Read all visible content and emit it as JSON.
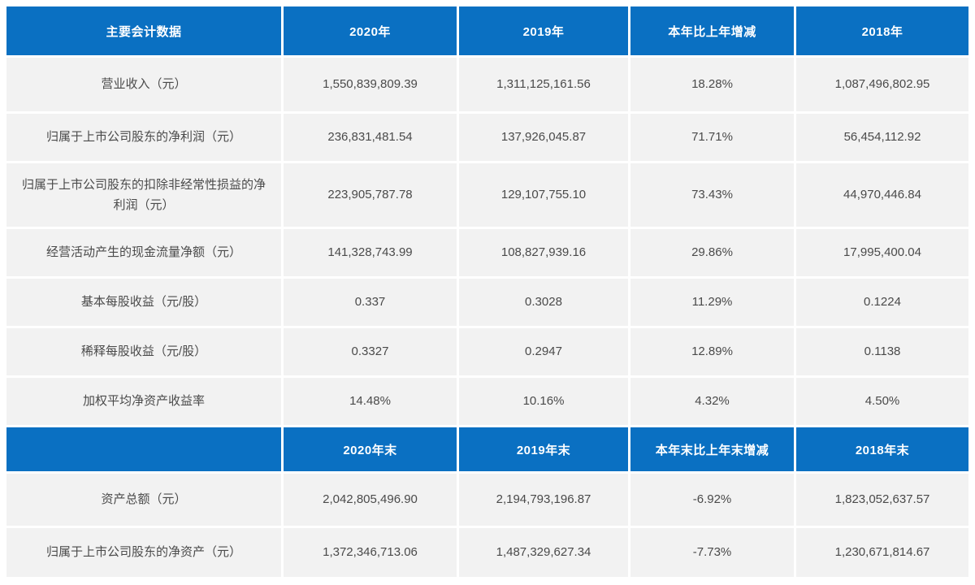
{
  "colors": {
    "header_bg": "#0a70c2",
    "cell_bg": "#f2f2f2",
    "cell_text": "#4a4a4a",
    "header_text": "#ffffff"
  },
  "table": {
    "section1": {
      "headers": [
        "主要会计数据",
        "2020年",
        "2019年",
        "本年比上年增减",
        "2018年"
      ],
      "rows": [
        {
          "cells": [
            "营业收入（元）",
            "1,550,839,809.39",
            "1,311,125,161.56",
            "18.28%",
            "1,087,496,802.95"
          ]
        },
        {
          "cells": [
            "归属于上市公司股东的净利润（元）",
            "236,831,481.54",
            "137,926,045.87",
            "71.71%",
            "56,454,112.92"
          ]
        },
        {
          "cells": [
            "归属于上市公司股东的扣除非经常性损益的净利润（元）",
            "223,905,787.78",
            "129,107,755.10",
            "73.43%",
            "44,970,446.84"
          ]
        },
        {
          "cells": [
            "经营活动产生的现金流量净额（元）",
            "141,328,743.99",
            "108,827,939.16",
            "29.86%",
            "17,995,400.04"
          ]
        },
        {
          "cells": [
            "基本每股收益（元/股）",
            "0.337",
            "0.3028",
            "11.29%",
            "0.1224"
          ]
        },
        {
          "cells": [
            "稀释每股收益（元/股）",
            "0.3327",
            "0.2947",
            "12.89%",
            "0.1138"
          ]
        },
        {
          "cells": [
            "加权平均净资产收益率",
            "14.48%",
            "10.16%",
            "4.32%",
            "4.50%"
          ]
        }
      ]
    },
    "section2": {
      "headers": [
        "",
        "2020年末",
        "2019年末",
        "本年末比上年末增减",
        "2018年末"
      ],
      "rows": [
        {
          "cells": [
            "资产总额（元）",
            "2,042,805,496.90",
            "2,194,793,196.87",
            "-6.92%",
            "1,823,052,637.57"
          ]
        },
        {
          "cells": [
            "归属于上市公司股东的净资产（元）",
            "1,372,346,713.06",
            "1,487,329,627.34",
            "-7.73%",
            "1,230,671,814.67"
          ]
        }
      ]
    }
  }
}
